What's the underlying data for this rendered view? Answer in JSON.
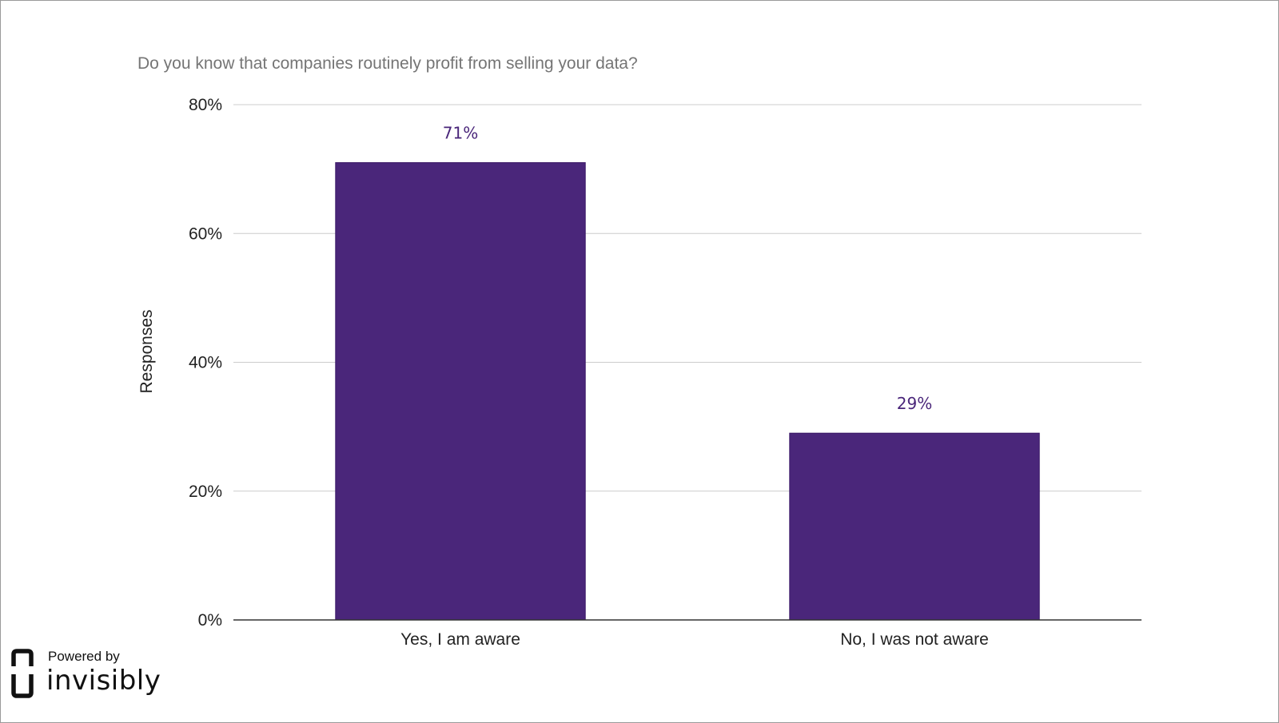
{
  "chart_data": {
    "type": "bar",
    "title": "Do you know that companies routinely profit from selling your data?",
    "ylabel": "Responses",
    "xlabel": "",
    "categories": [
      "Yes, I am aware",
      "No, I was not aware"
    ],
    "values": [
      71,
      29
    ],
    "data_labels": [
      "71%",
      "29%"
    ],
    "ylim": [
      0,
      80
    ],
    "yticks": [
      0,
      20,
      40,
      60,
      80
    ],
    "ytick_labels": [
      "0%",
      "20%",
      "40%",
      "60%",
      "80%"
    ],
    "grid": true,
    "legend": "none",
    "bar_color": "#4a267a",
    "label_color": "#4a267a"
  },
  "branding": {
    "powered_by": "Powered by",
    "name": "invisibly",
    "logo_icon": "invisibly-logo-icon"
  }
}
